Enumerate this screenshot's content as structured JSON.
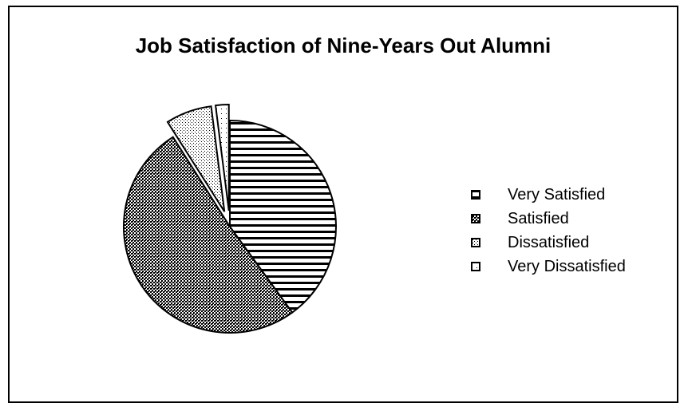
{
  "chart_data": {
    "type": "pie",
    "title": "Job Satisfaction of Nine-Years Out Alumni",
    "categories": [
      "Very Satisfied",
      "Satisfied",
      "Dissatisfied",
      "Very Dissatisfied"
    ],
    "values": [
      40,
      51,
      7,
      2
    ],
    "unit": "%",
    "legend_position": "right",
    "exploded": [
      false,
      false,
      true,
      true
    ],
    "fills": [
      "horizontal-stripes",
      "crosshatch-dense",
      "dotted-light",
      "dotted-sparse"
    ]
  }
}
